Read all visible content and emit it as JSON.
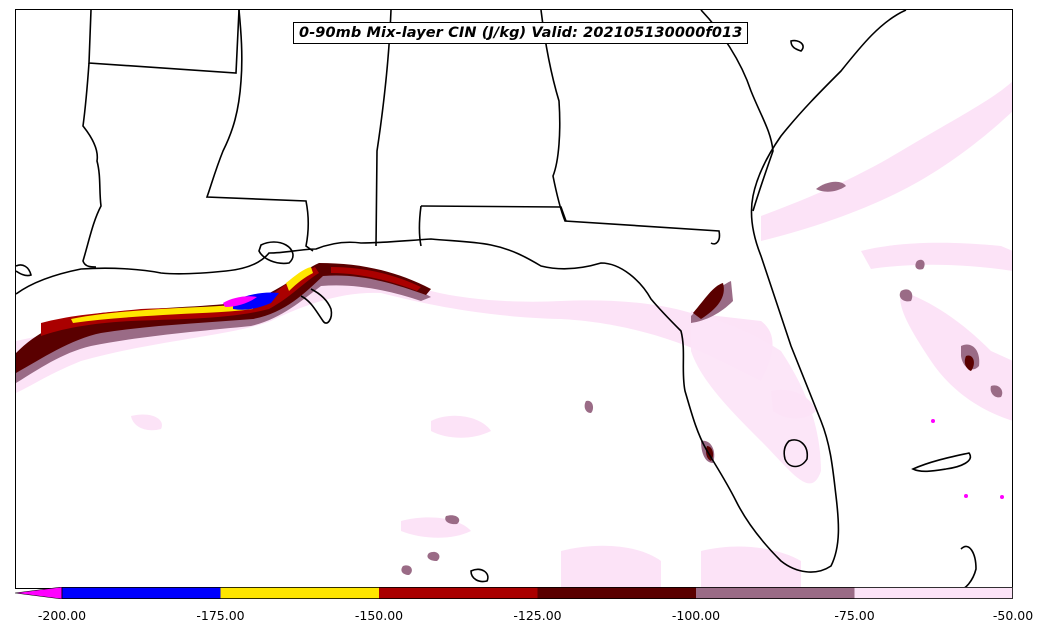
{
  "map": {
    "title": "0-90mb Mix-layer CIN (J/kg) Valid: 202105130000f013",
    "region": "Gulf of Mexico / Southeastern United States"
  },
  "colorbar": {
    "extend": "min",
    "under_color": "#ff00ff",
    "bins": [
      {
        "from": -200,
        "to": -175,
        "color": "#0000ff"
      },
      {
        "from": -175,
        "to": -150,
        "color": "#ffe600"
      },
      {
        "from": -150,
        "to": -125,
        "color": "#aa0000"
      },
      {
        "from": -125,
        "to": -100,
        "color": "#5a0000"
      },
      {
        "from": -100,
        "to": -75,
        "color": "#9a6b86"
      },
      {
        "from": -75,
        "to": -50,
        "color": "#fce3f7"
      }
    ],
    "ticks": [
      "-200.00",
      "-175.00",
      "-150.00",
      "-125.00",
      "-100.00",
      "-75.00",
      "-50.00"
    ]
  }
}
